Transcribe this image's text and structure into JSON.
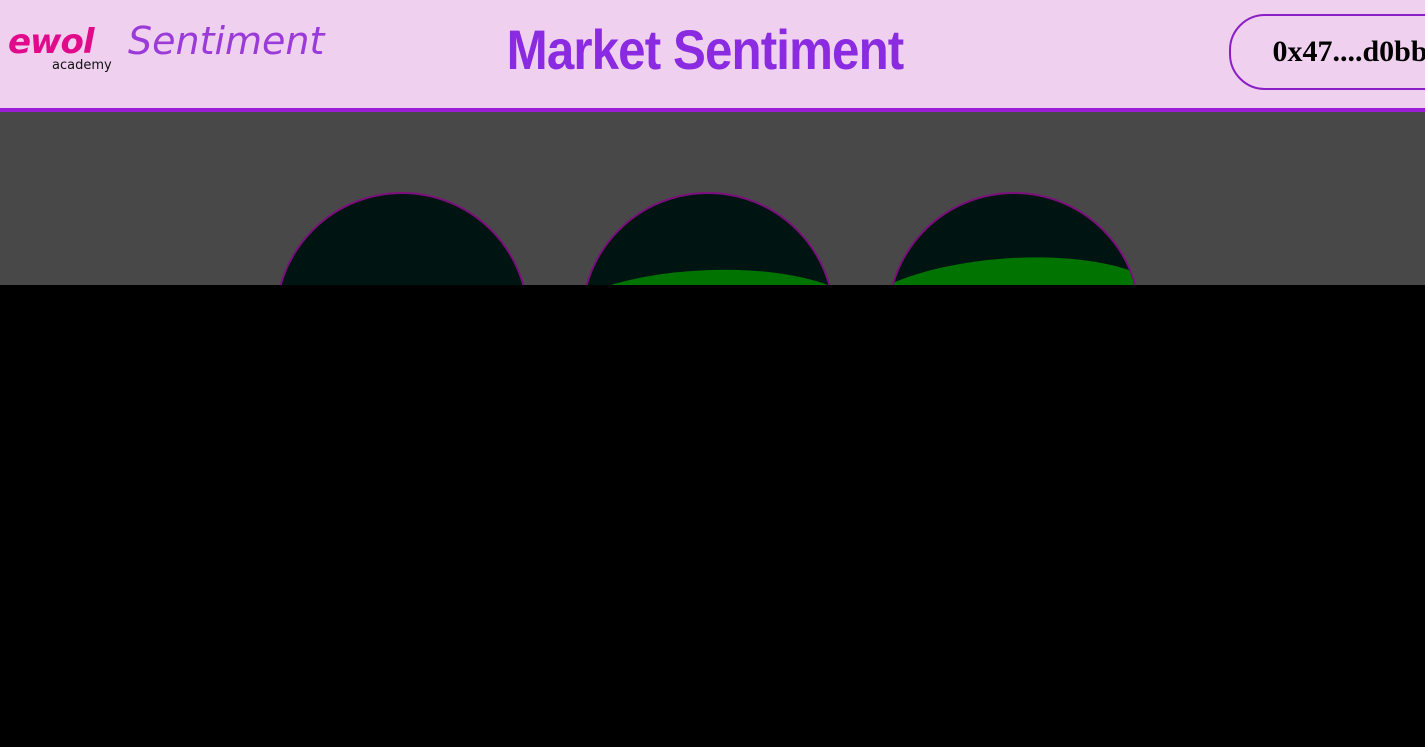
{
  "header": {
    "logo_word": "ewol",
    "logo_sub": "academy",
    "brand": "Sentiment",
    "title": "Market Sentiment",
    "wallet_address": "0x47....d0bb"
  },
  "colors": {
    "header_bg": "#f0d0ef",
    "accent": "#8a2be2",
    "logo_pink": "#e00a8a",
    "panel_bg": "#484848",
    "gauge_dark": "#001412",
    "gauge_fill": "#007300",
    "gauge_border": "#7c0f7c"
  },
  "gauges": [
    {
      "id": "gauge-1",
      "fill_level": 0
    },
    {
      "id": "gauge-2",
      "fill_level": 0.7
    },
    {
      "id": "gauge-3",
      "fill_level": 0.75
    }
  ]
}
